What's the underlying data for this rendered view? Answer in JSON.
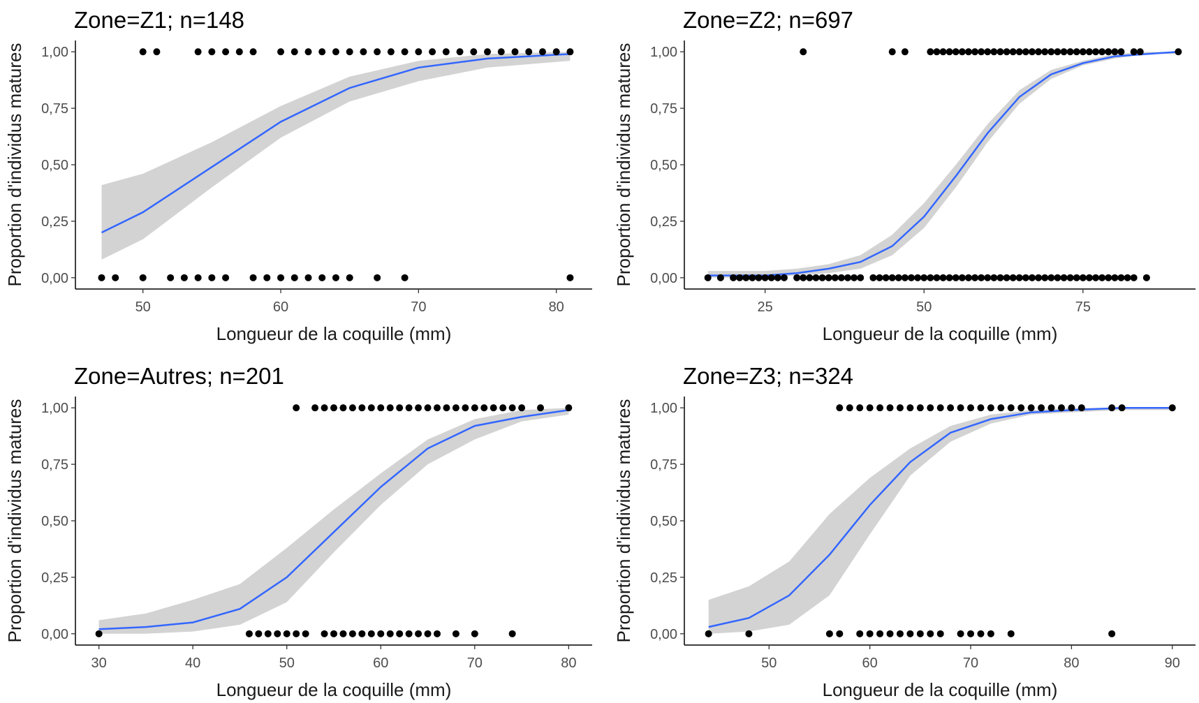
{
  "chart_data": [
    {
      "type": "scatter",
      "title": "Zone=Z1; n=148",
      "xlabel": "Longueur de la coquille (mm)",
      "ylabel": "Proportion d'individus matures",
      "xlim": [
        45.1,
        82.6
      ],
      "ylim": [
        -0.05,
        1.05
      ],
      "xticks": [
        50,
        60,
        70,
        80
      ],
      "yticks": [
        0,
        0.25,
        0.5,
        0.75,
        1
      ],
      "ytick_labels": [
        "0,00",
        "0,25",
        "0,50",
        "0,75",
        "1,00"
      ],
      "grid": false,
      "colors": {
        "points": "#000000",
        "fit": "#3366ff",
        "ribbon": "#d3d3d3"
      },
      "points_mature": [
        50,
        51,
        54,
        55,
        56,
        57,
        58,
        60,
        61,
        62,
        63,
        64,
        65,
        66,
        67,
        68,
        69,
        70,
        71,
        72,
        73,
        74,
        75,
        76,
        77,
        78,
        79,
        80,
        81
      ],
      "points_immature": [
        47,
        48,
        50,
        52,
        53,
        54,
        55,
        56,
        58,
        59,
        60,
        61,
        62,
        63,
        64,
        65,
        67,
        69,
        81
      ],
      "fit": {
        "x": [
          47,
          50,
          55,
          60,
          65,
          70,
          75,
          81
        ],
        "y": [
          0.2,
          0.29,
          0.49,
          0.69,
          0.84,
          0.93,
          0.97,
          0.99
        ],
        "lo": [
          0.08,
          0.17,
          0.4,
          0.62,
          0.78,
          0.87,
          0.93,
          0.96
        ],
        "hi": [
          0.41,
          0.46,
          0.6,
          0.76,
          0.89,
          0.96,
          0.99,
          1.0
        ]
      }
    },
    {
      "type": "scatter",
      "title": "Zone=Z2; n=697",
      "xlabel": "Longueur de la coquille (mm)",
      "ylabel": "Proportion d'individus matures",
      "xlim": [
        12.3,
        92.7
      ],
      "ylim": [
        -0.05,
        1.05
      ],
      "xticks": [
        25,
        50,
        75
      ],
      "yticks": [
        0,
        0.25,
        0.5,
        0.75,
        1
      ],
      "ytick_labels": [
        "0,00",
        "0,25",
        "0,50",
        "0,75",
        "1,00"
      ],
      "grid": false,
      "colors": {
        "points": "#000000",
        "fit": "#3366ff",
        "ribbon": "#d3d3d3"
      },
      "points_mature": [
        31,
        45,
        47,
        51,
        52,
        53,
        54,
        55,
        56,
        57,
        58,
        59,
        60,
        61,
        62,
        63,
        64,
        65,
        66,
        67,
        68,
        69,
        70,
        71,
        72,
        73,
        74,
        75,
        76,
        77,
        78,
        79,
        80,
        81,
        83,
        84,
        90
      ],
      "points_immature": [
        16,
        18,
        20,
        21,
        22,
        23,
        24,
        25,
        26,
        27,
        28,
        30,
        31,
        32,
        33,
        34,
        35,
        36,
        37,
        38,
        39,
        40,
        42,
        43,
        44,
        45,
        46,
        47,
        48,
        49,
        50,
        51,
        52,
        53,
        54,
        55,
        56,
        57,
        58,
        59,
        60,
        61,
        62,
        63,
        64,
        65,
        66,
        67,
        68,
        69,
        70,
        71,
        72,
        73,
        74,
        75,
        76,
        77,
        78,
        79,
        80,
        81,
        82,
        83,
        85
      ],
      "fit": {
        "x": [
          16,
          25,
          30,
          35,
          40,
          45,
          50,
          55,
          60,
          65,
          70,
          75,
          80,
          85,
          90
        ],
        "y": [
          0.01,
          0.01,
          0.02,
          0.04,
          0.07,
          0.14,
          0.27,
          0.45,
          0.64,
          0.8,
          0.9,
          0.95,
          0.98,
          0.99,
          1.0
        ],
        "lo": [
          0.0,
          0.0,
          0.01,
          0.02,
          0.04,
          0.1,
          0.22,
          0.4,
          0.6,
          0.77,
          0.88,
          0.94,
          0.97,
          0.99,
          0.99
        ],
        "hi": [
          0.03,
          0.03,
          0.04,
          0.06,
          0.1,
          0.19,
          0.33,
          0.5,
          0.68,
          0.83,
          0.92,
          0.96,
          0.99,
          1.0,
          1.0
        ]
      }
    },
    {
      "type": "scatter",
      "title": "Zone=Autres; n=201",
      "xlabel": "Longueur de la coquille (mm)",
      "ylabel": "Proportion d'individus matures",
      "xlim": [
        27.5,
        82.5
      ],
      "ylim": [
        -0.05,
        1.05
      ],
      "xticks": [
        30,
        40,
        50,
        60,
        70,
        80
      ],
      "yticks": [
        0,
        0.25,
        0.5,
        0.75,
        1
      ],
      "ytick_labels": [
        "0,00",
        "0,25",
        "0,50",
        "0,75",
        "1,00"
      ],
      "grid": false,
      "colors": {
        "points": "#000000",
        "fit": "#3366ff",
        "ribbon": "#d3d3d3"
      },
      "points_mature": [
        51,
        53,
        54,
        55,
        56,
        57,
        58,
        59,
        60,
        61,
        62,
        63,
        64,
        65,
        66,
        67,
        68,
        69,
        70,
        71,
        72,
        73,
        74,
        75,
        77,
        80
      ],
      "points_immature": [
        30,
        46,
        47,
        48,
        49,
        50,
        51,
        52,
        54,
        55,
        56,
        57,
        58,
        59,
        60,
        61,
        62,
        63,
        64,
        65,
        66,
        68,
        70,
        74
      ],
      "fit": {
        "x": [
          30,
          35,
          40,
          45,
          50,
          55,
          60,
          65,
          70,
          75,
          80
        ],
        "y": [
          0.02,
          0.03,
          0.05,
          0.11,
          0.25,
          0.45,
          0.65,
          0.82,
          0.92,
          0.96,
          0.99
        ],
        "lo": [
          0.0,
          0.0,
          0.01,
          0.04,
          0.14,
          0.36,
          0.57,
          0.75,
          0.86,
          0.94,
          0.97
        ],
        "hi": [
          0.06,
          0.09,
          0.15,
          0.22,
          0.38,
          0.55,
          0.71,
          0.86,
          0.95,
          0.99,
          1.0
        ]
      }
    },
    {
      "type": "scatter",
      "title": "Zone=Z3; n=324",
      "xlabel": "Longueur de la coquille (mm)",
      "ylabel": "Proportion d'individus matures",
      "xlim": [
        41.6,
        92.3
      ],
      "ylim": [
        -0.05,
        1.05
      ],
      "xticks": [
        50,
        60,
        70,
        80,
        90
      ],
      "yticks": [
        0,
        0.25,
        0.5,
        0.75,
        1
      ],
      "ytick_labels": [
        "0,00",
        "0,25",
        "0,50",
        "0,75",
        "1,00"
      ],
      "grid": false,
      "colors": {
        "points": "#000000",
        "fit": "#3366ff",
        "ribbon": "#d3d3d3"
      },
      "points_mature": [
        57,
        58,
        59,
        60,
        61,
        62,
        63,
        64,
        65,
        66,
        67,
        68,
        69,
        70,
        71,
        72,
        73,
        74,
        75,
        76,
        77,
        78,
        79,
        80,
        81,
        84,
        85,
        90
      ],
      "points_immature": [
        44,
        48,
        56,
        57,
        59,
        60,
        61,
        62,
        63,
        64,
        65,
        66,
        67,
        69,
        70,
        71,
        72,
        74,
        84
      ],
      "fit": {
        "x": [
          44,
          48,
          52,
          56,
          60,
          64,
          68,
          72,
          76,
          80,
          85,
          90
        ],
        "y": [
          0.03,
          0.07,
          0.17,
          0.35,
          0.57,
          0.76,
          0.89,
          0.95,
          0.98,
          0.99,
          1.0,
          1.0
        ],
        "lo": [
          0.0,
          0.01,
          0.04,
          0.17,
          0.44,
          0.7,
          0.85,
          0.93,
          0.97,
          0.98,
          0.99,
          0.99
        ],
        "hi": [
          0.15,
          0.21,
          0.32,
          0.53,
          0.69,
          0.82,
          0.92,
          0.97,
          0.99,
          1.0,
          1.0,
          1.0
        ]
      }
    }
  ]
}
